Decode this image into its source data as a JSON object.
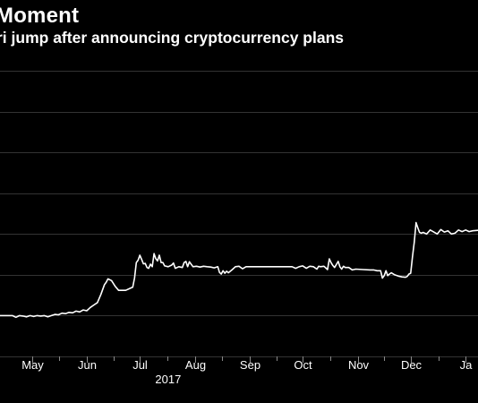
{
  "chart_data": {
    "type": "line",
    "title": "Moment",
    "subtitle": "ri jump after announcing cryptocurrency plans",
    "xlabel": "",
    "ylabel": "",
    "grid": true,
    "line_color": "#ffffff",
    "background": "#000000",
    "grid_color": "#333333",
    "x_ticks": [
      {
        "label": "May",
        "day": 13
      },
      {
        "label": "Jun",
        "day": 44
      },
      {
        "label": "Jul",
        "day": 74
      },
      {
        "label": "Aug",
        "day": 105
      },
      {
        "label": "Sep",
        "day": 136
      },
      {
        "label": "Oct",
        "day": 166
      },
      {
        "label": "Nov",
        "day": 197
      },
      {
        "label": "Dec",
        "day": 227
      },
      {
        "label": "Ja",
        "day": 258
      }
    ],
    "year_labels": [
      {
        "label": "2017",
        "day": 90
      }
    ],
    "y_gridlines": [
      100,
      200,
      300,
      400,
      500,
      600,
      700,
      800
    ],
    "ylim": [
      100,
      820
    ],
    "xlim": [
      -5,
      265
    ],
    "series": [
      {
        "name": "",
        "points": [
          [
            -5,
            200
          ],
          [
            -1,
            200
          ],
          [
            2,
            200
          ],
          [
            4,
            196
          ],
          [
            6,
            200
          ],
          [
            8,
            199
          ],
          [
            10,
            197
          ],
          [
            12,
            200
          ],
          [
            14,
            198
          ],
          [
            16,
            200
          ],
          [
            18,
            199
          ],
          [
            20,
            200
          ],
          [
            22,
            197
          ],
          [
            24,
            200
          ],
          [
            26,
            203
          ],
          [
            28,
            202
          ],
          [
            30,
            206
          ],
          [
            32,
            205
          ],
          [
            34,
            208
          ],
          [
            36,
            207
          ],
          [
            38,
            211
          ],
          [
            40,
            209
          ],
          [
            42,
            214
          ],
          [
            44,
            212
          ],
          [
            46,
            220
          ],
          [
            48,
            226
          ],
          [
            50,
            232
          ],
          [
            52,
            252
          ],
          [
            54,
            276
          ],
          [
            55,
            282
          ],
          [
            56,
            290
          ],
          [
            58,
            286
          ],
          [
            60,
            272
          ],
          [
            62,
            262
          ],
          [
            64,
            262
          ],
          [
            66,
            262
          ],
          [
            68,
            266
          ],
          [
            70,
            270
          ],
          [
            71,
            292
          ],
          [
            72,
            330
          ],
          [
            73,
            336
          ],
          [
            74,
            348
          ],
          [
            75,
            338
          ],
          [
            76,
            327
          ],
          [
            77,
            328
          ],
          [
            78,
            318
          ],
          [
            79,
            316
          ],
          [
            80,
            326
          ],
          [
            81,
            320
          ],
          [
            82,
            352
          ],
          [
            83,
            340
          ],
          [
            84,
            334
          ],
          [
            85,
            348
          ],
          [
            86,
            330
          ],
          [
            87,
            330
          ],
          [
            88,
            322
          ],
          [
            90,
            320
          ],
          [
            92,
            324
          ],
          [
            93,
            329
          ],
          [
            94,
            316
          ],
          [
            96,
            320
          ],
          [
            98,
            318
          ],
          [
            99,
            330
          ],
          [
            100,
            333
          ],
          [
            101,
            320
          ],
          [
            102,
            332
          ],
          [
            104,
            320
          ],
          [
            106,
            321
          ],
          [
            108,
            319
          ],
          [
            110,
            321
          ],
          [
            112,
            320
          ],
          [
            114,
            319
          ],
          [
            116,
            317
          ],
          [
            118,
            320
          ],
          [
            119,
            306
          ],
          [
            120,
            302
          ],
          [
            121,
            310
          ],
          [
            122,
            304
          ],
          [
            123,
            309
          ],
          [
            124,
            305
          ],
          [
            126,
            312
          ],
          [
            128,
            320
          ],
          [
            130,
            321
          ],
          [
            132,
            315
          ],
          [
            134,
            320
          ],
          [
            136,
            320
          ],
          [
            140,
            320
          ],
          [
            144,
            320
          ],
          [
            148,
            320
          ],
          [
            152,
            320
          ],
          [
            156,
            320
          ],
          [
            160,
            320
          ],
          [
            162,
            316
          ],
          [
            164,
            320
          ],
          [
            166,
            322
          ],
          [
            168,
            316
          ],
          [
            170,
            321
          ],
          [
            172,
            320
          ],
          [
            174,
            314
          ],
          [
            175,
            321
          ],
          [
            176,
            320
          ],
          [
            178,
            321
          ],
          [
            180,
            313
          ],
          [
            181,
            339
          ],
          [
            182,
            330
          ],
          [
            183,
            323
          ],
          [
            184,
            318
          ],
          [
            186,
            333
          ],
          [
            187,
            320
          ],
          [
            188,
            314
          ],
          [
            189,
            321
          ],
          [
            190,
            318
          ],
          [
            192,
            318
          ],
          [
            194,
            312
          ],
          [
            196,
            314
          ],
          [
            200,
            313
          ],
          [
            204,
            312
          ],
          [
            206,
            312
          ],
          [
            208,
            310
          ],
          [
            210,
            310
          ],
          [
            211,
            292
          ],
          [
            212,
            298
          ],
          [
            213,
            310
          ],
          [
            214,
            298
          ],
          [
            215,
            302
          ],
          [
            216,
            305
          ],
          [
            218,
            300
          ],
          [
            220,
            297
          ],
          [
            222,
            295
          ],
          [
            224,
            294
          ],
          [
            225,
            296
          ],
          [
            226,
            302
          ],
          [
            227,
            304
          ],
          [
            228,
            344
          ],
          [
            229,
            380
          ],
          [
            230,
            428
          ],
          [
            231,
            415
          ],
          [
            232,
            404
          ],
          [
            233,
            402
          ],
          [
            234,
            404
          ],
          [
            236,
            400
          ],
          [
            238,
            410
          ],
          [
            240,
            405
          ],
          [
            242,
            400
          ],
          [
            244,
            411
          ],
          [
            246,
            405
          ],
          [
            248,
            408
          ],
          [
            250,
            400
          ],
          [
            252,
            402
          ],
          [
            254,
            410
          ],
          [
            256,
            406
          ],
          [
            258,
            410
          ],
          [
            260,
            406
          ],
          [
            262,
            408
          ],
          [
            265,
            409
          ]
        ]
      }
    ]
  }
}
